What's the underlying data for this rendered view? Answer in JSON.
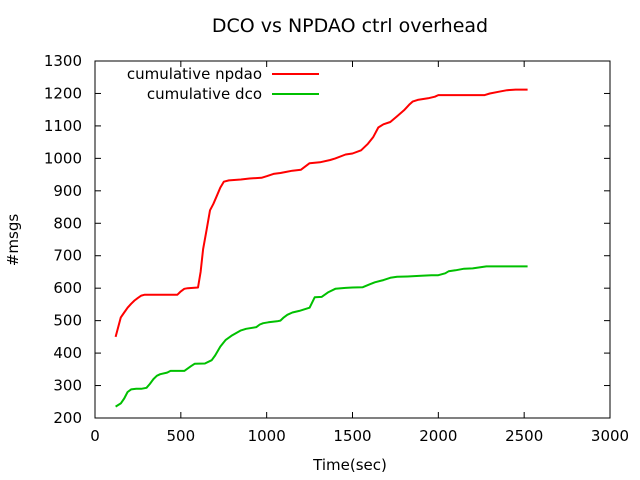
{
  "chart_data": {
    "type": "line",
    "title": "DCO vs NPDAO ctrl overhead",
    "xlabel": "Time(sec)",
    "ylabel": "#msgs",
    "xlim": [
      0,
      3000
    ],
    "ylim": [
      200,
      1300
    ],
    "xticks": [
      0,
      500,
      1000,
      1500,
      2000,
      2500,
      3000
    ],
    "yticks": [
      200,
      300,
      400,
      500,
      600,
      700,
      800,
      900,
      1000,
      1100,
      1200,
      1300
    ],
    "grid": false,
    "legend_position": "top-left",
    "series": [
      {
        "name": "cumulative npdao",
        "color": "#ff0000",
        "points": [
          [
            120,
            450
          ],
          [
            135,
            480
          ],
          [
            150,
            510
          ],
          [
            170,
            525
          ],
          [
            190,
            540
          ],
          [
            210,
            552
          ],
          [
            230,
            562
          ],
          [
            250,
            570
          ],
          [
            270,
            577
          ],
          [
            290,
            580
          ],
          [
            350,
            580
          ],
          [
            400,
            580
          ],
          [
            480,
            580
          ],
          [
            500,
            590
          ],
          [
            520,
            598
          ],
          [
            540,
            600
          ],
          [
            600,
            602
          ],
          [
            615,
            650
          ],
          [
            630,
            720
          ],
          [
            650,
            780
          ],
          [
            670,
            840
          ],
          [
            690,
            860
          ],
          [
            710,
            885
          ],
          [
            730,
            910
          ],
          [
            750,
            928
          ],
          [
            780,
            932
          ],
          [
            850,
            935
          ],
          [
            900,
            938
          ],
          [
            970,
            940
          ],
          [
            1000,
            945
          ],
          [
            1040,
            952
          ],
          [
            1080,
            955
          ],
          [
            1110,
            958
          ],
          [
            1150,
            962
          ],
          [
            1200,
            965
          ],
          [
            1250,
            985
          ],
          [
            1310,
            988
          ],
          [
            1370,
            995
          ],
          [
            1400,
            1000
          ],
          [
            1460,
            1012
          ],
          [
            1500,
            1015
          ],
          [
            1550,
            1025
          ],
          [
            1590,
            1045
          ],
          [
            1620,
            1065
          ],
          [
            1650,
            1095
          ],
          [
            1680,
            1105
          ],
          [
            1720,
            1112
          ],
          [
            1760,
            1130
          ],
          [
            1800,
            1148
          ],
          [
            1830,
            1165
          ],
          [
            1850,
            1175
          ],
          [
            1880,
            1180
          ],
          [
            1940,
            1185
          ],
          [
            1980,
            1190
          ],
          [
            2000,
            1195
          ],
          [
            2100,
            1195
          ],
          [
            2200,
            1195
          ],
          [
            2270,
            1195
          ],
          [
            2300,
            1200
          ],
          [
            2350,
            1205
          ],
          [
            2400,
            1210
          ],
          [
            2450,
            1212
          ],
          [
            2520,
            1212
          ]
        ]
      },
      {
        "name": "cumulative dco",
        "color": "#00c000",
        "points": [
          [
            120,
            235
          ],
          [
            150,
            245
          ],
          [
            170,
            260
          ],
          [
            190,
            280
          ],
          [
            210,
            288
          ],
          [
            240,
            290
          ],
          [
            270,
            290
          ],
          [
            300,
            293
          ],
          [
            320,
            305
          ],
          [
            340,
            320
          ],
          [
            360,
            330
          ],
          [
            380,
            335
          ],
          [
            420,
            340
          ],
          [
            440,
            345
          ],
          [
            520,
            345
          ],
          [
            560,
            360
          ],
          [
            580,
            367
          ],
          [
            640,
            368
          ],
          [
            680,
            378
          ],
          [
            700,
            393
          ],
          [
            730,
            420
          ],
          [
            760,
            440
          ],
          [
            800,
            455
          ],
          [
            850,
            470
          ],
          [
            880,
            475
          ],
          [
            940,
            480
          ],
          [
            960,
            488
          ],
          [
            980,
            492
          ],
          [
            1010,
            495
          ],
          [
            1060,
            498
          ],
          [
            1080,
            500
          ],
          [
            1100,
            510
          ],
          [
            1120,
            518
          ],
          [
            1150,
            525
          ],
          [
            1190,
            530
          ],
          [
            1220,
            535
          ],
          [
            1250,
            540
          ],
          [
            1280,
            572
          ],
          [
            1320,
            573
          ],
          [
            1360,
            588
          ],
          [
            1400,
            598
          ],
          [
            1460,
            601
          ],
          [
            1500,
            602
          ],
          [
            1560,
            603
          ],
          [
            1600,
            612
          ],
          [
            1630,
            618
          ],
          [
            1680,
            625
          ],
          [
            1720,
            632
          ],
          [
            1760,
            635
          ],
          [
            1820,
            636
          ],
          [
            1900,
            638
          ],
          [
            1960,
            640
          ],
          [
            2000,
            640
          ],
          [
            2040,
            646
          ],
          [
            2060,
            652
          ],
          [
            2100,
            655
          ],
          [
            2150,
            660
          ],
          [
            2200,
            661
          ],
          [
            2240,
            664
          ],
          [
            2280,
            667
          ],
          [
            2400,
            667
          ],
          [
            2520,
            667
          ]
        ]
      }
    ]
  }
}
